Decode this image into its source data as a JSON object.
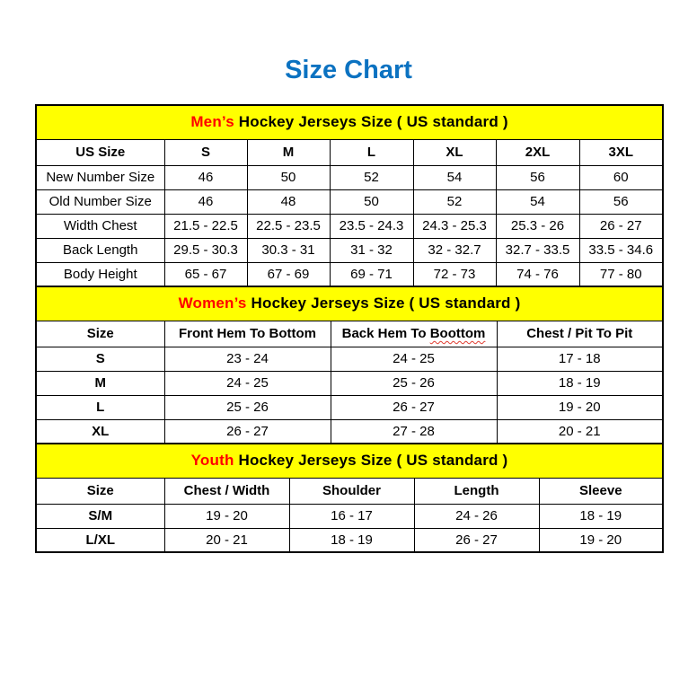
{
  "page_title": "Size Chart",
  "colors": {
    "title_blue": "#0B72C1",
    "section_header_yellow": "#FFFF00",
    "section_accent_red": "#FF0000",
    "table_border_black": "#000000",
    "page_background": "#FFFFFF"
  },
  "chart_data": [
    {
      "type": "table",
      "id": "mens",
      "title_accent": "Men’s",
      "title_rest": " Hockey Jerseys Size ( US standard )",
      "columns": [
        "US Size",
        "S",
        "M",
        "L",
        "XL",
        "2XL",
        "3XL"
      ],
      "rows": [
        {
          "label": "New Number Size",
          "values": [
            "46",
            "50",
            "52",
            "54",
            "56",
            "60"
          ]
        },
        {
          "label": "Old Number Size",
          "values": [
            "46",
            "48",
            "50",
            "52",
            "54",
            "56"
          ]
        },
        {
          "label": "Width Chest",
          "values": [
            "21.5 - 22.5",
            "22.5 - 23.5",
            "23.5 - 24.3",
            "24.3 - 25.3",
            "25.3 - 26",
            "26 - 27"
          ]
        },
        {
          "label": "Back Length",
          "values": [
            "29.5 - 30.3",
            "30.3 - 31",
            "31 - 32",
            "32 - 32.7",
            "32.7 - 33.5",
            "33.5 - 34.6"
          ]
        },
        {
          "label": "Body Height",
          "values": [
            "65 - 67",
            "67 - 69",
            "69 - 71",
            "72 - 73",
            "74 - 76",
            "77 - 80"
          ]
        }
      ]
    },
    {
      "type": "table",
      "id": "womens",
      "title_accent": "Women’s",
      "title_rest": " Hockey Jerseys Size ( US standard )",
      "columns": [
        "Size",
        "Front Hem To Bottom",
        "Back Hem To Boottom",
        "Chest / Pit To Pit"
      ],
      "misspell": {
        "column": 2,
        "word": "Boottom"
      },
      "rows": [
        {
          "label": "S",
          "values": [
            "23 - 24",
            "24 - 25",
            "17 - 18"
          ]
        },
        {
          "label": "M",
          "values": [
            "24 - 25",
            "25 - 26",
            "18 - 19"
          ]
        },
        {
          "label": "L",
          "values": [
            "25 - 26",
            "26 - 27",
            "19 - 20"
          ]
        },
        {
          "label": "XL",
          "values": [
            "26 - 27",
            "27 - 28",
            "20 - 21"
          ]
        }
      ]
    },
    {
      "type": "table",
      "id": "youth",
      "title_accent": "Youth",
      "title_rest": " Hockey Jerseys Size ( US standard )",
      "columns": [
        "Size",
        "Chest / Width",
        "Shoulder",
        "Length",
        "Sleeve"
      ],
      "rows": [
        {
          "label": "S/M",
          "values": [
            "19 - 20",
            "16 - 17",
            "24 - 26",
            "18 - 19"
          ]
        },
        {
          "label": "L/XL",
          "values": [
            "20 - 21",
            "18 - 19",
            "26 - 27",
            "19 - 20"
          ]
        }
      ]
    }
  ]
}
